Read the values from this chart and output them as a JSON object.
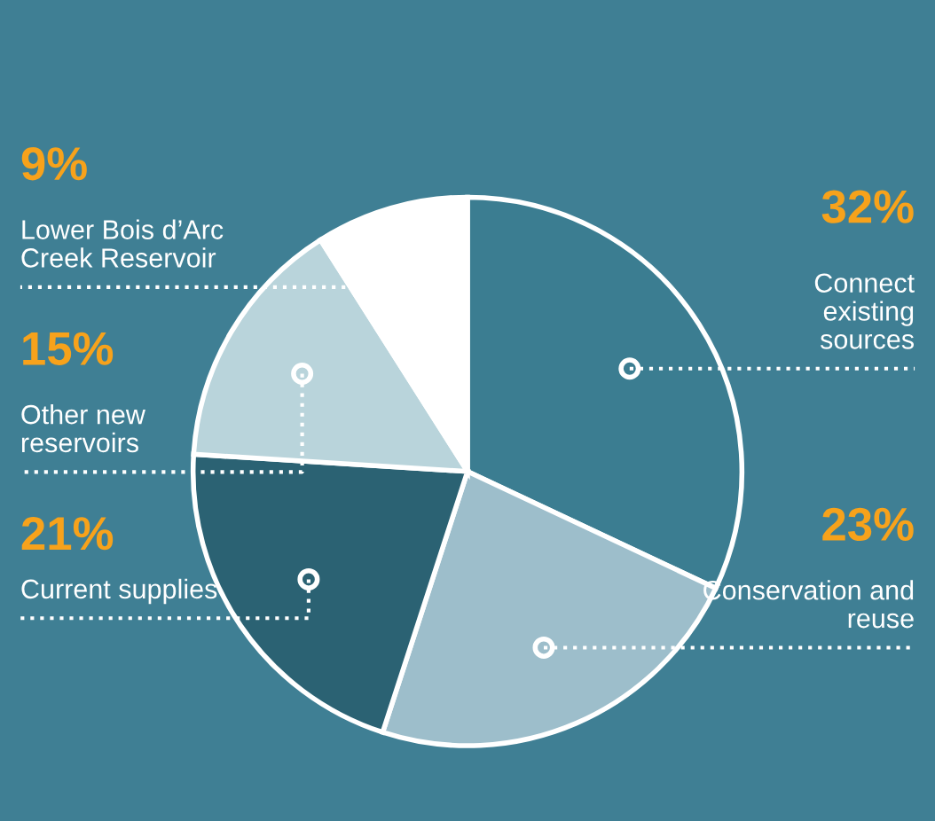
{
  "chart_data": {
    "type": "pie",
    "categories": [
      "Connect\nexisting\nsources",
      "Conservation and\nreuse",
      "Current supplies",
      "Other new\nreservoirs",
      "Lower Bois d’Arc\nCreek Reservoir"
    ],
    "values": [
      32,
      23,
      21,
      15,
      9
    ],
    "value_labels": [
      "32%",
      "23%",
      "21%",
      "15%",
      "9%"
    ],
    "colors": [
      "#3b7d91",
      "#9dbecb",
      "#2b6273",
      "#b9d4db",
      "#ffffff"
    ]
  }
}
